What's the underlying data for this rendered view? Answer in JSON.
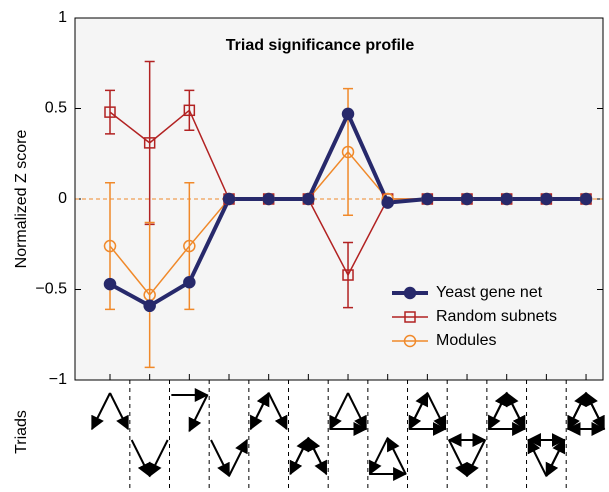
{
  "chart_data": {
    "type": "line",
    "title": "Triad significance profile",
    "y_label": "Normalized Z score",
    "x_label": "Triads",
    "categories": [
      null,
      null,
      null,
      null,
      null,
      null,
      null,
      null,
      null,
      null,
      null,
      null,
      null
    ],
    "ylim": [
      -1,
      1
    ],
    "yticks": [
      {
        "value": -1,
        "label": "−1"
      },
      {
        "value": -0.5,
        "label": "−0.5"
      },
      0,
      0.5,
      1
    ],
    "legend": "lower right",
    "series": [
      {
        "name": "Yeast gene net",
        "color": "#27296b",
        "marker": "filled-circle",
        "values": [
          -0.47,
          -0.59,
          -0.46,
          0,
          0,
          0,
          0.47,
          -0.02,
          0,
          0,
          0,
          0,
          0
        ]
      },
      {
        "name": "Random subnets",
        "color": "#b22222",
        "marker": "square",
        "values": [
          0.48,
          0.31,
          0.49,
          0,
          0,
          0,
          -0.42,
          0,
          0,
          0,
          0,
          0,
          0
        ],
        "errors": [
          0.12,
          0.45,
          0.11,
          0,
          0,
          0,
          0.18,
          0,
          0,
          0,
          0,
          0,
          0
        ]
      },
      {
        "name": "Modules",
        "color": "#f0892a",
        "marker": "circle",
        "values": [
          -0.26,
          -0.53,
          -0.26,
          0,
          0,
          0,
          0.26,
          0,
          0,
          0,
          0,
          0,
          0
        ],
        "errors": [
          0.35,
          0.4,
          0.35,
          0,
          0,
          0,
          0.35,
          0,
          0,
          0,
          0,
          0,
          0
        ]
      }
    ]
  }
}
